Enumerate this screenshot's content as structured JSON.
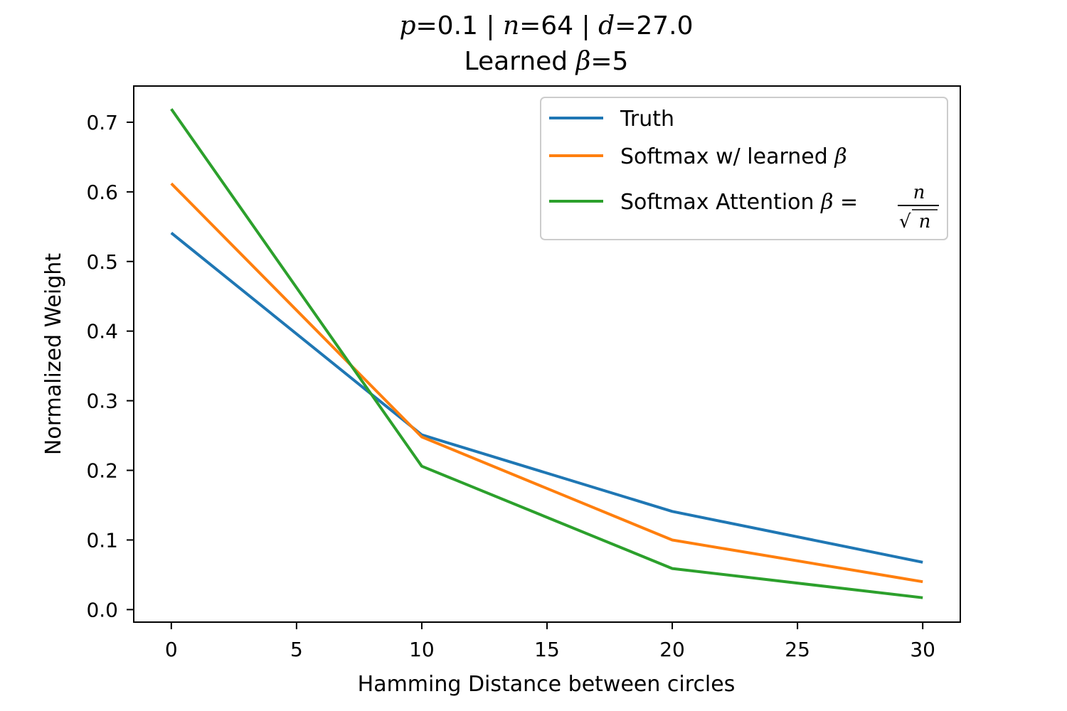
{
  "chart_data": {
    "type": "line",
    "title": {
      "line1_parts": [
        "p",
        "=0.1 | ",
        "n",
        "=64 | ",
        "d",
        "=27.0"
      ],
      "line2_parts": [
        "Learned ",
        "β",
        "=5"
      ]
    },
    "xlabel": "Hamming Distance between circles",
    "ylabel": "Normalized Weight",
    "xlim": [
      -1.5,
      31.5
    ],
    "ylim": [
      -0.018,
      0.752
    ],
    "xticks": [
      0,
      5,
      10,
      15,
      20,
      25,
      30
    ],
    "yticks": [
      0.0,
      0.1,
      0.2,
      0.3,
      0.4,
      0.5,
      0.6,
      0.7
    ],
    "ytick_labels": [
      "0.0",
      "0.1",
      "0.2",
      "0.3",
      "0.4",
      "0.5",
      "0.6",
      "0.7"
    ],
    "grid": false,
    "legend_position": "top-right",
    "x": [
      0,
      10,
      20,
      30
    ],
    "series": [
      {
        "name": "Truth",
        "color": "#1f77b4",
        "values": [
          0.541,
          0.251,
          0.141,
          0.068
        ]
      },
      {
        "name": "Softmax w/ learned β",
        "name_parts": [
          "Softmax w/ learned ",
          "β"
        ],
        "color": "#ff7f0e",
        "values": [
          0.612,
          0.248,
          0.1,
          0.04
        ]
      },
      {
        "name": "Softmax Attention β = n/√n",
        "name_parts": [
          "Softmax Attention ",
          "β",
          " = ",
          "n",
          "√",
          "n"
        ],
        "color": "#2ca02c",
        "values": [
          0.719,
          0.206,
          0.059,
          0.017
        ]
      }
    ]
  }
}
